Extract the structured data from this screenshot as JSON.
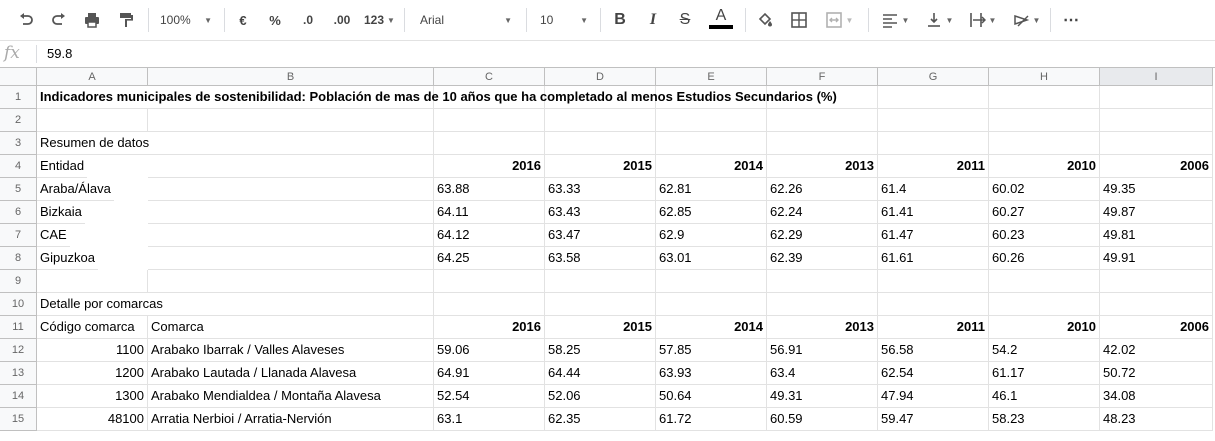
{
  "toolbar": {
    "zoom": "100%",
    "currency": "€",
    "percent": "%",
    "dec_decrease": ".0",
    "dec_increase": ".00",
    "more_formats": "123",
    "font": "Arial",
    "font_size": "10",
    "bold": "B",
    "italic": "I",
    "strike": "S",
    "text_color_letter": "A",
    "more": "⋯"
  },
  "formula_bar": {
    "fx": "fx",
    "value": "59.8"
  },
  "columns": [
    "A",
    "B",
    "C",
    "D",
    "E",
    "F",
    "G",
    "H",
    "I"
  ],
  "selected_column": "I",
  "rows": [
    {
      "num": "1",
      "cells": [
        "Indicadores municipales de sostenibilidad: Población de mas de 10 años que ha completado al menos Estudios Secundarios (%)",
        "",
        "",
        "",
        "",
        "",
        "",
        "",
        ""
      ]
    },
    {
      "num": "2",
      "cells": [
        "",
        "",
        "",
        "",
        "",
        "",
        "",
        "",
        ""
      ]
    },
    {
      "num": "3",
      "cells": [
        "Resumen de datos",
        "",
        "",
        "",
        "",
        "",
        "",
        "",
        ""
      ]
    },
    {
      "num": "4",
      "cells": [
        "Entidad",
        "",
        "2016",
        "2015",
        "2014",
        "2013",
        "2011",
        "2010",
        "2006"
      ]
    },
    {
      "num": "5",
      "cells": [
        "Araba/Álava",
        "",
        "63.88",
        "63.33",
        "62.81",
        "62.26",
        "61.4",
        "60.02",
        "49.35"
      ]
    },
    {
      "num": "6",
      "cells": [
        "Bizkaia",
        "",
        "64.11",
        "63.43",
        "62.85",
        "62.24",
        "61.41",
        "60.27",
        "49.87"
      ]
    },
    {
      "num": "7",
      "cells": [
        "CAE",
        "",
        "64.12",
        "63.47",
        "62.9",
        "62.29",
        "61.47",
        "60.23",
        "49.81"
      ]
    },
    {
      "num": "8",
      "cells": [
        "Gipuzkoa",
        "",
        "64.25",
        "63.58",
        "63.01",
        "62.39",
        "61.61",
        "60.26",
        "49.91"
      ]
    },
    {
      "num": "9",
      "cells": [
        "",
        "",
        "",
        "",
        "",
        "",
        "",
        "",
        ""
      ]
    },
    {
      "num": "10",
      "cells": [
        "Detalle por comarcas",
        "",
        "",
        "",
        "",
        "",
        "",
        "",
        ""
      ]
    },
    {
      "num": "11",
      "cells": [
        "Código comarca",
        "Comarca",
        "2016",
        "2015",
        "2014",
        "2013",
        "2011",
        "2010",
        "2006"
      ]
    },
    {
      "num": "12",
      "cells": [
        "1100",
        "Arabako Ibarrak / Valles Alaveses",
        "59.06",
        "58.25",
        "57.85",
        "56.91",
        "56.58",
        "54.2",
        "42.02"
      ]
    },
    {
      "num": "13",
      "cells": [
        "1200",
        "Arabako Lautada / Llanada Alavesa",
        "64.91",
        "64.44",
        "63.93",
        "63.4",
        "62.54",
        "61.17",
        "50.72"
      ]
    },
    {
      "num": "14",
      "cells": [
        "1300",
        "Arabako Mendialdea / Montaña Alavesa",
        "52.54",
        "52.06",
        "50.64",
        "49.31",
        "47.94",
        "46.1",
        "34.08"
      ]
    },
    {
      "num": "15",
      "cells": [
        "48100",
        "Arratia Nerbioi / Arratia-Nervión",
        "63.1",
        "62.35",
        "61.72",
        "60.59",
        "59.47",
        "58.23",
        "48.23"
      ]
    }
  ]
}
